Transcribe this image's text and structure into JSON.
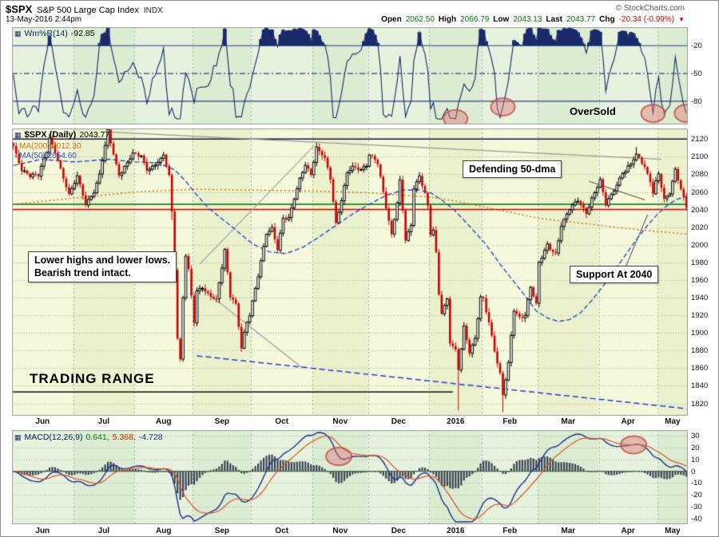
{
  "header": {
    "symbol": "$SPX",
    "name": "S&P 500 Large Cap Index",
    "exchange": "INDX",
    "copyright": "© StockCharts.com",
    "datetime": "13-May-2016 2:44pm",
    "quote": {
      "open_l": "Open",
      "open_v": "2062.50",
      "high_l": "High",
      "high_v": "2066.79",
      "low_l": "Low",
      "low_v": "2043.13",
      "last_l": "Last",
      "last_v": "2043.77",
      "chg_l": "Chg",
      "chg_v": "-20.34 (-0.99%)",
      "arrow": "▼"
    }
  },
  "indicators": {
    "wpr_label": "Wm%R(14)",
    "wpr_value": "-92.85",
    "main_label": "$SPX (Daily)",
    "main_value": "2043.77",
    "ma200_label": "MA(200) 2012.30",
    "ma50_label": "MA(50) 2054.60",
    "macd_label": "MACD(12,26,9)",
    "macd_v1": "0.641,",
    "macd_v2": "5.368,",
    "macd_v3": "-4.728"
  },
  "annotations": {
    "oversold": "OverSold",
    "defending": "Defending 50-dma",
    "support": "Support At 2040",
    "trend_line1": "Lower highs and lower lows.",
    "trend_line2": "Bearish trend intact.",
    "trading_range": "TRADING RANGE"
  },
  "chart_data": {
    "type": "candlestick",
    "symbol": "$SPX",
    "timeframe": "Daily",
    "title": "S&P 500 Large Cap Index",
    "last_close": 2043.77,
    "bars_total": 243,
    "x_axis": {
      "months": [
        {
          "label": "Jun",
          "start": 0
        },
        {
          "label": "Jul",
          "start": 22
        },
        {
          "label": "Aug",
          "start": 44
        },
        {
          "label": "Sep",
          "start": 65
        },
        {
          "label": "Oct",
          "start": 86
        },
        {
          "label": "Nov",
          "start": 108
        },
        {
          "label": "Dec",
          "start": 128
        },
        {
          "label": "2016",
          "start": 150
        },
        {
          "label": "Feb",
          "start": 169
        },
        {
          "label": "Mar",
          "start": 189
        },
        {
          "label": "Apr",
          "start": 211
        },
        {
          "label": "May",
          "start": 232
        }
      ]
    },
    "price_panel": {
      "ylim": [
        1806,
        2132
      ],
      "ticks": [
        2120,
        2100,
        2080,
        2060,
        2040,
        2020,
        2000,
        1980,
        1960,
        1940,
        1920,
        1900,
        1880,
        1860,
        1840,
        1820
      ],
      "close_anchors": [
        [
          0,
          2111
        ],
        [
          3,
          2085
        ],
        [
          6,
          2080
        ],
        [
          9,
          2079
        ],
        [
          12,
          2105
        ],
        [
          13,
          2121
        ],
        [
          16,
          2097
        ],
        [
          18,
          2076
        ],
        [
          20,
          2057
        ],
        [
          21,
          2063
        ],
        [
          23,
          2077
        ],
        [
          26,
          2046
        ],
        [
          29,
          2060
        ],
        [
          31,
          2080
        ],
        [
          34,
          2128
        ],
        [
          36,
          2102
        ],
        [
          38,
          2079
        ],
        [
          41,
          2094
        ],
        [
          43,
          2104
        ],
        [
          46,
          2100
        ],
        [
          48,
          2084
        ],
        [
          51,
          2091
        ],
        [
          54,
          2102
        ],
        [
          56,
          2079
        ],
        [
          57,
          2036
        ],
        [
          58,
          1971
        ],
        [
          59,
          1893
        ],
        [
          60,
          1868
        ],
        [
          61,
          1940
        ],
        [
          62,
          1988
        ],
        [
          63,
          1972
        ],
        [
          65,
          1914
        ],
        [
          66,
          1948
        ],
        [
          68,
          1951
        ],
        [
          70,
          1942
        ],
        [
          73,
          1938
        ],
        [
          76,
          1995
        ],
        [
          78,
          1943
        ],
        [
          80,
          1932
        ],
        [
          82,
          1882
        ],
        [
          84,
          1912
        ],
        [
          85,
          1920
        ],
        [
          87,
          1951
        ],
        [
          91,
          2013
        ],
        [
          93,
          2017
        ],
        [
          95,
          1994
        ],
        [
          97,
          2030
        ],
        [
          99,
          2031
        ],
        [
          101,
          2053
        ],
        [
          103,
          2075
        ],
        [
          105,
          2090
        ],
        [
          107,
          2079
        ],
        [
          109,
          2110
        ],
        [
          112,
          2099
        ],
        [
          114,
          2075
        ],
        [
          116,
          2023
        ],
        [
          118,
          2050
        ],
        [
          120,
          2081
        ],
        [
          122,
          2089
        ],
        [
          125,
          2086
        ],
        [
          127,
          2090
        ],
        [
          128,
          2102
        ],
        [
          131,
          2092
        ],
        [
          133,
          2060
        ],
        [
          136,
          2012
        ],
        [
          138,
          2048
        ],
        [
          139,
          2073
        ],
        [
          141,
          2005
        ],
        [
          143,
          2021
        ],
        [
          144,
          2064
        ],
        [
          146,
          2078
        ],
        [
          148,
          2060
        ],
        [
          149,
          2044
        ],
        [
          150,
          2012
        ],
        [
          151,
          2017
        ],
        [
          152,
          1990
        ],
        [
          153,
          1943
        ],
        [
          154,
          1922
        ],
        [
          156,
          1938
        ],
        [
          157,
          1890
        ],
        [
          159,
          1881
        ],
        [
          160,
          1859
        ],
        [
          162,
          1907
        ],
        [
          164,
          1877
        ],
        [
          166,
          1893
        ],
        [
          168,
          1940
        ],
        [
          169,
          1939
        ],
        [
          171,
          1913
        ],
        [
          173,
          1880
        ],
        [
          175,
          1853
        ],
        [
          176,
          1829
        ],
        [
          178,
          1865
        ],
        [
          180,
          1926
        ],
        [
          182,
          1918
        ],
        [
          184,
          1921
        ],
        [
          186,
          1952
        ],
        [
          188,
          1932
        ],
        [
          189,
          1978
        ],
        [
          192,
          2000
        ],
        [
          195,
          1990
        ],
        [
          197,
          2022
        ],
        [
          200,
          2040
        ],
        [
          203,
          2050
        ],
        [
          206,
          2037
        ],
        [
          209,
          2060
        ],
        [
          211,
          2073
        ],
        [
          213,
          2045
        ],
        [
          216,
          2062
        ],
        [
          219,
          2082
        ],
        [
          222,
          2091
        ],
        [
          224,
          2102
        ],
        [
          227,
          2088
        ],
        [
          229,
          2072
        ],
        [
          230,
          2060
        ],
        [
          231,
          2072
        ],
        [
          232,
          2081
        ],
        [
          234,
          2051
        ],
        [
          236,
          2058
        ],
        [
          238,
          2084
        ],
        [
          240,
          2064
        ],
        [
          242,
          2044
        ]
      ],
      "wick_overrides": [
        {
          "i": 13,
          "high": 2126
        },
        {
          "i": 34,
          "high": 2131
        },
        {
          "i": 57,
          "low": 2028
        },
        {
          "i": 60,
          "low": 1867
        },
        {
          "i": 109,
          "high": 2116
        },
        {
          "i": 160,
          "low": 1812
        },
        {
          "i": 176,
          "low": 1810
        },
        {
          "i": 224,
          "high": 2111
        }
      ],
      "ma50": {
        "label": "MA(50) 2054.60",
        "color": "#2a4fc9",
        "anchors": [
          [
            0,
            2090
          ],
          [
            10,
            2097
          ],
          [
            22,
            2094
          ],
          [
            34,
            2097
          ],
          [
            44,
            2094
          ],
          [
            52,
            2093
          ],
          [
            58,
            2085
          ],
          [
            62,
            2072
          ],
          [
            65,
            2060
          ],
          [
            70,
            2042
          ],
          [
            78,
            2022
          ],
          [
            86,
            2001
          ],
          [
            92,
            1992
          ],
          [
            98,
            1990
          ],
          [
            104,
            1997
          ],
          [
            110,
            2009
          ],
          [
            116,
            2022
          ],
          [
            122,
            2035
          ],
          [
            128,
            2046
          ],
          [
            134,
            2056
          ],
          [
            140,
            2062
          ],
          [
            146,
            2062
          ],
          [
            150,
            2059
          ],
          [
            154,
            2051
          ],
          [
            158,
            2041
          ],
          [
            162,
            2028
          ],
          [
            166,
            2014
          ],
          [
            170,
            2000
          ],
          [
            175,
            1978
          ],
          [
            180,
            1958
          ],
          [
            184,
            1942
          ],
          [
            188,
            1925
          ],
          [
            192,
            1917
          ],
          [
            196,
            1913
          ],
          [
            200,
            1915
          ],
          [
            204,
            1923
          ],
          [
            208,
            1937
          ],
          [
            212,
            1953
          ],
          [
            216,
            1970
          ],
          [
            220,
            1988
          ],
          [
            224,
            2006
          ],
          [
            228,
            2022
          ],
          [
            232,
            2036
          ],
          [
            236,
            2047
          ],
          [
            239,
            2052
          ],
          [
            242,
            2055
          ]
        ]
      },
      "ma200": {
        "label": "MA(200) 2012.30",
        "color": "#d96b00",
        "anchors": [
          [
            0,
            2046
          ],
          [
            22,
            2053
          ],
          [
            44,
            2060
          ],
          [
            65,
            2063
          ],
          [
            86,
            2062
          ],
          [
            108,
            2061
          ],
          [
            128,
            2059
          ],
          [
            150,
            2054
          ],
          [
            160,
            2049
          ],
          [
            169,
            2043
          ],
          [
            180,
            2036
          ],
          [
            189,
            2030
          ],
          [
            200,
            2026
          ],
          [
            211,
            2022
          ],
          [
            222,
            2018
          ],
          [
            232,
            2015
          ],
          [
            242,
            2012
          ]
        ]
      },
      "hlines": [
        {
          "v": 2120,
          "color": "#0a1a3c",
          "w": 1.4
        },
        {
          "v": 2046,
          "color": "#007000",
          "w": 1.5
        },
        {
          "v": 2040,
          "color": "#dd0000",
          "w": 1.5
        },
        {
          "v": 1833,
          "color": "#111111",
          "w": 1.5,
          "i2": 158
        }
      ],
      "trendlines": [
        {
          "p1": [
            34,
            2128
          ],
          "p2": [
            233,
            2097
          ],
          "color": "#999999",
          "w": 1.3
        },
        {
          "p1": [
            67,
            1978
          ],
          "p2": [
            108,
            2112
          ],
          "color": "#aaaaaa",
          "w": 1.3
        },
        {
          "p1": [
            67,
            1952
          ],
          "p2": [
            104,
            1860
          ],
          "color": "#aaaaaa",
          "w": 1.3
        },
        {
          "p1": [
            66,
            1874
          ],
          "p2": [
            242,
            1814
          ],
          "color": "#2b3bd1",
          "w": 1.5,
          "dash": [
            7,
            4
          ]
        },
        {
          "p1": [
            207,
            2072
          ],
          "p2": [
            227,
            2051
          ],
          "color": "#444444",
          "w": 1
        },
        {
          "p1": [
            220,
            1974
          ],
          "p2": [
            228,
            2034
          ],
          "color": "#444444",
          "w": 1
        }
      ]
    },
    "wpr_panel": {
      "label": "Wm%R(14)",
      "value": -92.85,
      "period": 14,
      "levels": [
        -20,
        -50,
        -80
      ],
      "ylim": [
        0,
        -105
      ],
      "oversold_circles": [
        159,
        176,
        230,
        242
      ]
    },
    "macd_panel": {
      "label": "MACD(12,26,9)",
      "values": [
        0.641,
        5.368,
        -4.728
      ],
      "ticks": [
        30,
        20,
        10,
        0,
        -10,
        -20,
        -30,
        -40
      ],
      "ylim": [
        35,
        -45
      ],
      "peak_circles": [
        117,
        223
      ]
    },
    "colors": {
      "candle_up": "#000000",
      "candle_down": "#cc0000",
      "wpr_line": "#1a2a6b",
      "macd_line": "#20308f",
      "macd_signal": "#d9532b",
      "highlight_circle": "#e17878"
    }
  }
}
